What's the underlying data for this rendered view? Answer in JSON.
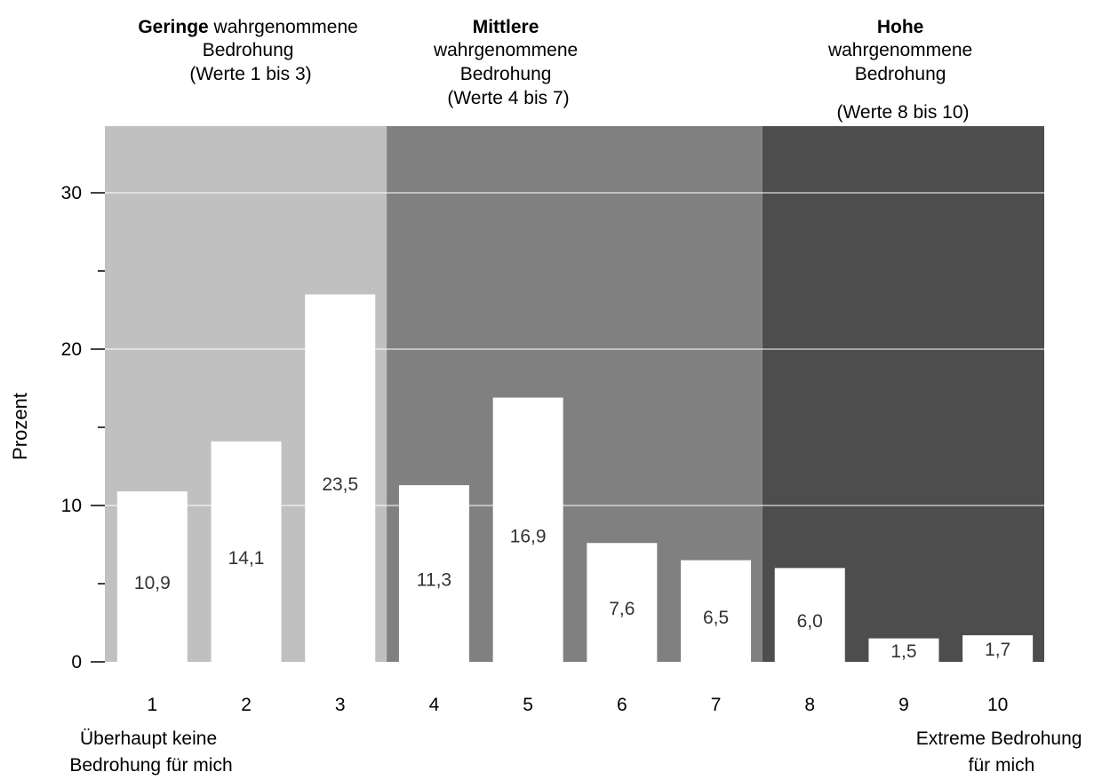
{
  "chart_data": {
    "type": "bar",
    "categories": [
      "1",
      "2",
      "3",
      "4",
      "5",
      "6",
      "7",
      "8",
      "9",
      "10"
    ],
    "values": [
      10.9,
      14.1,
      23.5,
      11.3,
      16.9,
      7.6,
      6.5,
      6.0,
      1.5,
      1.7
    ],
    "value_labels": [
      "10,9",
      "14,1",
      "23,5",
      "11,3",
      "16,9",
      "7,6",
      "6,5",
      "6,0",
      "1,5",
      "1,7"
    ],
    "ylabel": "Prozent",
    "ylim": [
      0,
      34
    ],
    "yticks": [
      0,
      10,
      20,
      30
    ],
    "grid": true,
    "colors": {
      "low": "#c0c0c0",
      "medium": "#808080",
      "high": "#4d4d4d",
      "bar": "#ffffff",
      "value_text": "#333333"
    },
    "groups": [
      {
        "range": [
          1,
          3
        ],
        "bold": "Geringe",
        "lines": [
          "wahrgenommene",
          "Bedrohung",
          "(Werte 1 bis 3)"
        ]
      },
      {
        "range": [
          4,
          7
        ],
        "bold": "Mittlere",
        "lines": [
          "wahrgenommene",
          "Bedrohung",
          "(Werte 4 bis 7)"
        ]
      },
      {
        "range": [
          8,
          10
        ],
        "bold": "Hohe",
        "lines": [
          "wahrgenommene",
          "Bedrohung",
          "(Werte 8 bis 10)"
        ]
      }
    ],
    "x_end_labels": {
      "left": [
        "Überhaupt keine",
        "Bedrohung für mich"
      ],
      "right": [
        "Extreme Bedrohung",
        "für mich"
      ]
    }
  }
}
